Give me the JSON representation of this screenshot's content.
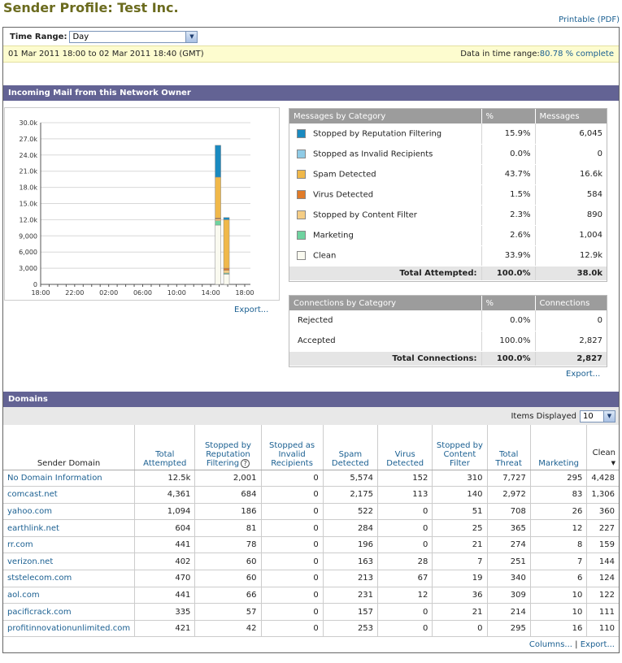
{
  "page": {
    "title": "Sender Profile: Test Inc.",
    "printable": "Printable (PDF)"
  },
  "time_range": {
    "label": "Time Range:",
    "selected": "Day",
    "range_text": "01 Mar 2011 18:00 to 02 Mar 2011 18:40 (GMT)",
    "data_label": "Data in time range:",
    "data_value": "80.78 % complete"
  },
  "incoming": {
    "title": "Incoming Mail from this Network Owner",
    "export": "Export..."
  },
  "chart_data": {
    "type": "bar",
    "stacked": true,
    "categories": [
      "18:00",
      "22:00",
      "02:00",
      "06:00",
      "10:00",
      "14:00",
      "18:00"
    ],
    "yticks": [
      "0",
      "3,000",
      "6,000",
      "9,000",
      "12.0k",
      "15.0k",
      "18.0k",
      "21.0k",
      "24.0k",
      "27.0k",
      "30.0k"
    ],
    "ylim": [
      0,
      30000
    ],
    "bars": [
      {
        "x": 14.9,
        "segments": [
          {
            "series": "Clean",
            "value": 11000,
            "color": "#fafaf0"
          },
          {
            "series": "Marketing",
            "value": 800,
            "color": "#6fd3a0"
          },
          {
            "series": "Stopped by Content Filter",
            "value": 300,
            "color": "#f5cd85"
          },
          {
            "series": "Virus Detected",
            "value": 200,
            "color": "#e07b28"
          },
          {
            "series": "Spam Detected",
            "value": 7600,
            "color": "#f0b84a"
          },
          {
            "series": "Stopped by Reputation Filtering",
            "value": 5900,
            "color": "#1a8ac0"
          }
        ]
      },
      {
        "x": 15.9,
        "segments": [
          {
            "series": "Clean",
            "value": 1900,
            "color": "#fafaf0"
          },
          {
            "series": "Marketing",
            "value": 200,
            "color": "#6fd3a0"
          },
          {
            "series": "Stopped by Content Filter",
            "value": 500,
            "color": "#f5cd85"
          },
          {
            "series": "Virus Detected",
            "value": 400,
            "color": "#e07b28"
          },
          {
            "series": "Spam Detected",
            "value": 9000,
            "color": "#f0b84a"
          },
          {
            "series": "Stopped by Reputation Filtering",
            "value": 400,
            "color": "#1a8ac0"
          }
        ]
      }
    ]
  },
  "messages_by_category": {
    "headers": [
      "Messages by Category",
      "%",
      "Messages"
    ],
    "rows": [
      {
        "label": "Stopped by Reputation Filtering",
        "pct": "15.9%",
        "count": "6,045",
        "color": "#1a8ac0"
      },
      {
        "label": "Stopped as Invalid Recipients",
        "pct": "0.0%",
        "count": "0",
        "color": "#8fcbe6"
      },
      {
        "label": "Spam Detected",
        "pct": "43.7%",
        "count": "16.6k",
        "color": "#f0b84a"
      },
      {
        "label": "Virus Detected",
        "pct": "1.5%",
        "count": "584",
        "color": "#e07b28"
      },
      {
        "label": "Stopped by Content Filter",
        "pct": "2.3%",
        "count": "890",
        "color": "#f5cd85"
      },
      {
        "label": "Marketing",
        "pct": "2.6%",
        "count": "1,004",
        "color": "#6fd3a0"
      },
      {
        "label": "Clean",
        "pct": "33.9%",
        "count": "12.9k",
        "color": "#fafaf0"
      }
    ],
    "total": {
      "label": "Total Attempted:",
      "pct": "100.0%",
      "count": "38.0k"
    }
  },
  "connections_by_category": {
    "headers": [
      "Connections by Category",
      "%",
      "Connections"
    ],
    "rows": [
      {
        "label": "Rejected",
        "pct": "0.0%",
        "count": "0"
      },
      {
        "label": "Accepted",
        "pct": "100.0%",
        "count": "2,827"
      }
    ],
    "total": {
      "label": "Total Connections:",
      "pct": "100.0%",
      "count": "2,827"
    },
    "export": "Export..."
  },
  "domains": {
    "title": "Domains",
    "items_label": "Items Displayed",
    "items_value": "10",
    "headers": [
      "Sender Domain",
      "Total Attempted",
      "Stopped by Reputation Filtering",
      "Stopped as Invalid Recipients",
      "Spam Detected",
      "Virus Detected",
      "Stopped by Content Filter",
      "Total Threat",
      "Marketing",
      "Clean"
    ],
    "rows": [
      [
        "No Domain Information",
        "12.5k",
        "2,001",
        "0",
        "5,574",
        "152",
        "310",
        "7,727",
        "295",
        "4,428"
      ],
      [
        "comcast.net",
        "4,361",
        "684",
        "0",
        "2,175",
        "113",
        "140",
        "2,972",
        "83",
        "1,306"
      ],
      [
        "yahoo.com",
        "1,094",
        "186",
        "0",
        "522",
        "0",
        "51",
        "708",
        "26",
        "360"
      ],
      [
        "earthlink.net",
        "604",
        "81",
        "0",
        "284",
        "0",
        "25",
        "365",
        "12",
        "227"
      ],
      [
        "rr.com",
        "441",
        "78",
        "0",
        "196",
        "0",
        "21",
        "274",
        "8",
        "159"
      ],
      [
        "verizon.net",
        "402",
        "60",
        "0",
        "163",
        "28",
        "7",
        "251",
        "7",
        "144"
      ],
      [
        "ststelecom.com",
        "470",
        "60",
        "0",
        "213",
        "67",
        "19",
        "340",
        "6",
        "124"
      ],
      [
        "aol.com",
        "441",
        "66",
        "0",
        "231",
        "12",
        "36",
        "309",
        "10",
        "122"
      ],
      [
        "pacificrack.com",
        "335",
        "57",
        "0",
        "157",
        "0",
        "21",
        "214",
        "10",
        "111"
      ],
      [
        "profitinnovationunlimited.com",
        "421",
        "42",
        "0",
        "253",
        "0",
        "0",
        "295",
        "16",
        "110"
      ]
    ],
    "columns_link": "Columns...",
    "export": "Export..."
  }
}
